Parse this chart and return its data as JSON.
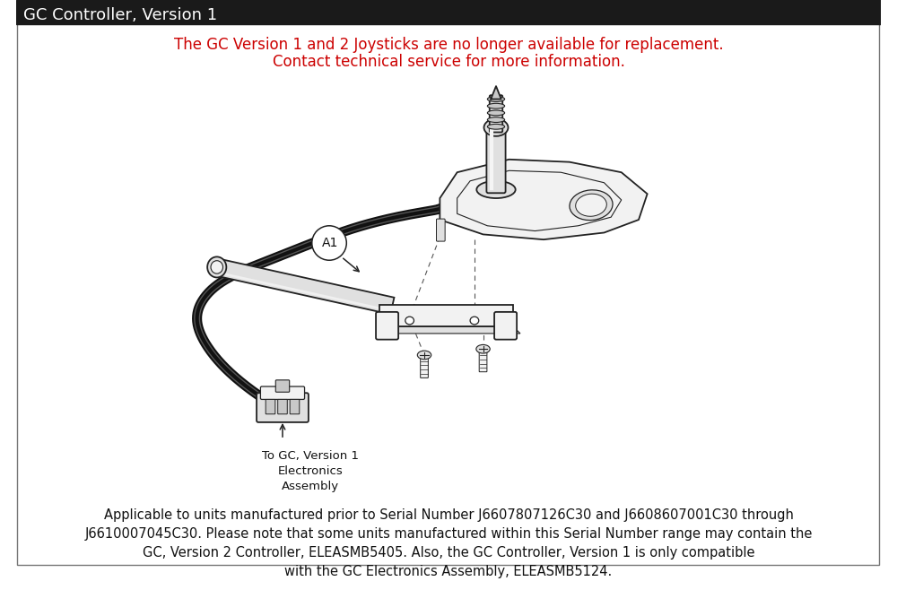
{
  "title": "GC Controller, Version 1",
  "title_bg": "#1a1a1a",
  "title_color": "#ffffff",
  "title_fontsize": 13,
  "warning_line1": "The GC Version 1 and 2 Joysticks are no longer available for replacement.",
  "warning_line2": "Contact technical service for more information.",
  "warning_color": "#cc0000",
  "warning_fontsize": 12,
  "label_A1": "A1",
  "callout_label": "To GC, Version 1\nElectronics\nAssembly",
  "footer_text": "Applicable to units manufactured prior to Serial Number J6607807126C30 and J6608607001C30 through\nJ6610007045C30. Please note that some units manufactured within this Serial Number range may contain the\nGC, Version 2 Controller, ELEASMB5405. Also, the GC Controller, Version 1 is only compatible\nwith the GC Electronics Assembly, ELEASMB5124.",
  "footer_fontsize": 10.5,
  "bg_color": "#ffffff",
  "line_color": "#222222",
  "light_fill": "#f2f2f2",
  "mid_fill": "#e0e0e0",
  "dark_fill": "#c8c8c8"
}
